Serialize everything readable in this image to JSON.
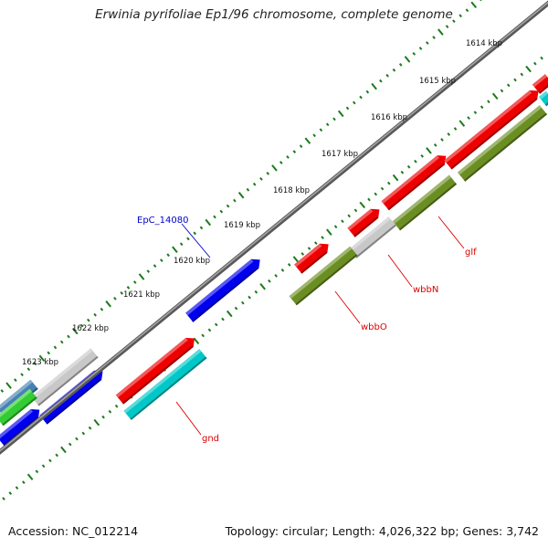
{
  "title": "Erwinia pyrifoliae Ep1/96 chromosome, complete genome",
  "footer": {
    "accession": "Accession: NC_012214",
    "summary": "Topology: circular; Length: 4,026,322 bp; Genes: 3,742"
  },
  "scale_labels": [
    "1614 kbp",
    "1615 kbp",
    "1616 kbp",
    "1617 kbp",
    "1618 kbp",
    "1619 kbp",
    "1620 kbp",
    "1621 kbp",
    "1622 kbp",
    "1623 kbp"
  ],
  "gene_labels": [
    {
      "text": "EpC_14080",
      "color": "#0000cc"
    },
    {
      "text": "glf",
      "color": "#dd0000"
    },
    {
      "text": "wbbN",
      "color": "#dd0000"
    },
    {
      "text": "wbbO",
      "color": "#dd0000"
    },
    {
      "text": "gnd",
      "color": "#dd0000"
    }
  ],
  "colors": {
    "backbone": "#777777",
    "tick": "#1a7a1a",
    "red": "#ee0000",
    "olive": "#6b8e23",
    "cyan": "#00c8c8",
    "gray": "#c8c8c8",
    "blue": "#0000ee",
    "green": "#33cc33",
    "steel": "#4682b4"
  }
}
